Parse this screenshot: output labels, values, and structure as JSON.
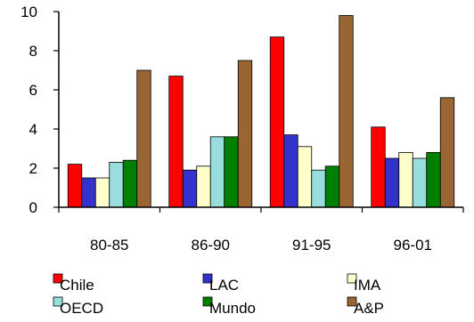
{
  "chart_data": {
    "type": "bar",
    "categories": [
      "80-85",
      "86-90",
      "91-95",
      "96-01"
    ],
    "yticks": [
      "0",
      "2",
      "4",
      "6",
      "8",
      "10"
    ],
    "ylim": [
      0,
      10
    ],
    "grid": false,
    "legend_position": "bottom",
    "series": [
      {
        "name": "Chile",
        "color": "#ff0000",
        "values": [
          2.2,
          6.7,
          8.7,
          4.1
        ]
      },
      {
        "name": "LAC",
        "color": "#3333cc",
        "values": [
          1.5,
          1.9,
          3.7,
          2.5
        ]
      },
      {
        "name": "IMA",
        "color": "#ffffcc",
        "values": [
          1.5,
          2.1,
          3.1,
          2.8
        ]
      },
      {
        "name": "OECD",
        "color": "#99dddd",
        "values": [
          2.3,
          3.6,
          1.9,
          2.5
        ]
      },
      {
        "name": "Mundo",
        "color": "#008000",
        "values": [
          2.4,
          3.6,
          2.1,
          2.8
        ]
      },
      {
        "name": "A&P",
        "color": "#996633",
        "values": [
          7.0,
          7.5,
          9.8,
          5.6
        ]
      }
    ]
  }
}
